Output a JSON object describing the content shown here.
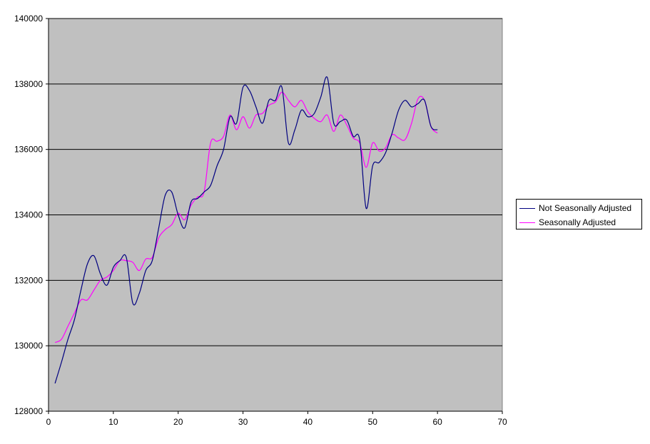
{
  "chart_data": {
    "type": "line",
    "title": "",
    "xlabel": "",
    "ylabel": "",
    "xlim": [
      0,
      70
    ],
    "ylim": [
      128000,
      140000
    ],
    "x_ticks": [
      0,
      10,
      20,
      30,
      40,
      50,
      60,
      70
    ],
    "y_ticks": [
      128000,
      130000,
      132000,
      134000,
      136000,
      138000,
      140000
    ],
    "grid": "horizontal major gridlines",
    "plot_background": "#C0C0C0",
    "legend_position": "right",
    "x": [
      1,
      2,
      3,
      4,
      5,
      6,
      7,
      8,
      9,
      10,
      11,
      12,
      13,
      14,
      15,
      16,
      17,
      18,
      19,
      20,
      21,
      22,
      23,
      24,
      25,
      26,
      27,
      28,
      29,
      30,
      31,
      32,
      33,
      34,
      35,
      36,
      37,
      38,
      39,
      40,
      41,
      42,
      43,
      44,
      45,
      46,
      47,
      48,
      49,
      50,
      51,
      52,
      53,
      54,
      55,
      56,
      57,
      58,
      59,
      60
    ],
    "series": [
      {
        "name": "Not Seasonally Adjusted",
        "color": "#000080",
        "values": [
          128850,
          129500,
          130200,
          130800,
          131700,
          132500,
          132750,
          132200,
          131850,
          132400,
          132600,
          132700,
          131300,
          131600,
          132300,
          132600,
          133600,
          134600,
          134700,
          134000,
          133600,
          134400,
          134500,
          134700,
          134900,
          135500,
          136000,
          137000,
          136800,
          137900,
          137800,
          137300,
          136800,
          137500,
          137500,
          137900,
          136200,
          136600,
          137200,
          137000,
          137100,
          137600,
          138200,
          136800,
          136850,
          136900,
          136400,
          136300,
          134200,
          135500,
          135600,
          135900,
          136500,
          137200,
          137500,
          137300,
          137400,
          137500,
          136700,
          136600
        ]
      },
      {
        "name": "Seasonally Adjusted",
        "color": "#FF00FF",
        "values": [
          130100,
          130200,
          130600,
          131000,
          131400,
          131400,
          131700,
          132000,
          132100,
          132300,
          132600,
          132600,
          132550,
          132300,
          132650,
          132700,
          133300,
          133550,
          133700,
          134050,
          133850,
          134300,
          134550,
          134700,
          136200,
          136250,
          136400,
          137050,
          136600,
          137000,
          136650,
          137050,
          137100,
          137350,
          137450,
          137750,
          137500,
          137300,
          137500,
          137150,
          136950,
          136850,
          137050,
          136550,
          137050,
          136750,
          136350,
          136200,
          135450,
          136200,
          135950,
          136050,
          136450,
          136350,
          136300,
          136800,
          137550,
          137500,
          136700,
          136500
        ]
      }
    ]
  },
  "legend": {
    "items": [
      {
        "label": "Not Seasonally Adjusted",
        "color": "#000080"
      },
      {
        "label": "Seasonally Adjusted",
        "color": "#FF00FF"
      }
    ]
  }
}
